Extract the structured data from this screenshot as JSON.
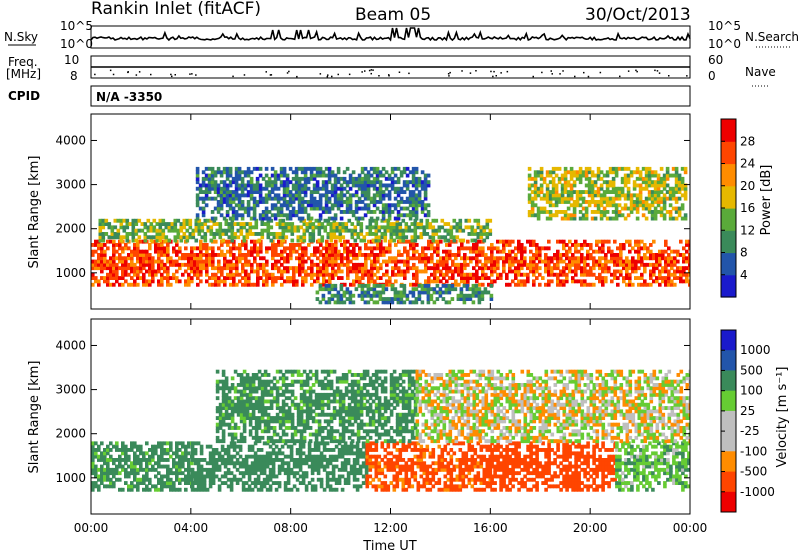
{
  "header": {
    "station": "Rankin Inlet (fitACF)",
    "beam": "Beam 05",
    "date": "30/Oct/2013"
  },
  "top_panels": {
    "nsky_label": "N.Sky",
    "nsky_ticks": [
      "10^5",
      "10^0"
    ],
    "nsearch_label": "N.Search",
    "nsearch_ticks": [
      "10^5",
      "10^0"
    ],
    "freq_label": "Freq.",
    "freq_unit": "[MHz]",
    "freq_ticks": [
      "10",
      "8"
    ],
    "nave_label": "Nave",
    "nave_ticks": [
      "60",
      "0"
    ],
    "cpid_label": "CPID",
    "cpid_value": "N/A -3350"
  },
  "colors": {
    "power_scale": [
      "#1a1acc",
      "#2255aa",
      "#3a8a5a",
      "#5aaa3a",
      "#e6b800",
      "#ff8c00",
      "#ff4500",
      "#ee0000"
    ],
    "velocity_scale": [
      "#ee0000",
      "#ff4500",
      "#ff8c00",
      "#bfbfbf",
      "#bfbfbf",
      "#66cc33",
      "#3a8a5a",
      "#2255aa",
      "#1a1acc"
    ]
  },
  "chart_data": [
    {
      "type": "heatmap",
      "name": "power",
      "ylabel": "Slant Range [km]",
      "yticks": [
        "1000",
        "2000",
        "3000",
        "4000"
      ],
      "ylim": [
        180,
        4600
      ],
      "xlim": [
        0,
        24
      ],
      "colorbar_label": "Power [dB]",
      "colorbar_ticks": [
        "4",
        "8",
        "12",
        "16",
        "20",
        "24",
        "28"
      ],
      "colorbar_range": [
        0,
        32
      ],
      "legend": "right",
      "bands": [
        {
          "range_km": [
            700,
            1700
          ],
          "start_h": 0.0,
          "end_h": 24.0,
          "value": 26
        },
        {
          "range_km": [
            1700,
            2200
          ],
          "start_h": 0.3,
          "end_h": 16.0,
          "value": 14
        },
        {
          "range_km": [
            2200,
            3400
          ],
          "start_h": 4.2,
          "end_h": 13.5,
          "value": 8
        },
        {
          "range_km": [
            2200,
            3400
          ],
          "start_h": 17.5,
          "end_h": 23.8,
          "value": 16
        },
        {
          "range_km": [
            300,
            700
          ],
          "start_h": 9.0,
          "end_h": 16.0,
          "value": 10
        }
      ]
    },
    {
      "type": "heatmap",
      "name": "velocity",
      "ylabel": "Slant Range [km]",
      "yticks": [
        "1000",
        "2000",
        "3000",
        "4000"
      ],
      "ylim": [
        180,
        4600
      ],
      "xlim": [
        0,
        24
      ],
      "xticks": [
        "00:00",
        "04:00",
        "08:00",
        "12:00",
        "16:00",
        "20:00",
        "00:00"
      ],
      "xlabel": "Time UT",
      "colorbar_label": "Velocity [m s⁻¹]",
      "colorbar_ticks": [
        "1000",
        "500",
        "100",
        "25",
        "-25",
        "-100",
        "-500",
        "-1000"
      ],
      "legend": "right",
      "bands": [
        {
          "range_km": [
            700,
            1800
          ],
          "start_h": 0.0,
          "end_h": 4.0,
          "value": 150
        },
        {
          "range_km": [
            700,
            1800
          ],
          "start_h": 4.0,
          "end_h": 11.0,
          "value": 200
        },
        {
          "range_km": [
            700,
            1800
          ],
          "start_h": 11.0,
          "end_h": 16.0,
          "value": -150
        },
        {
          "range_km": [
            700,
            1800
          ],
          "start_h": 16.0,
          "end_h": 21.0,
          "value": -300
        },
        {
          "range_km": [
            700,
            1800
          ],
          "start_h": 21.0,
          "end_h": 24.0,
          "value": 80
        },
        {
          "range_km": [
            1800,
            3400
          ],
          "start_h": 5.0,
          "end_h": 13.0,
          "value": 150
        },
        {
          "range_km": [
            1800,
            3400
          ],
          "start_h": 13.0,
          "end_h": 24.0,
          "value": 0
        }
      ]
    }
  ]
}
